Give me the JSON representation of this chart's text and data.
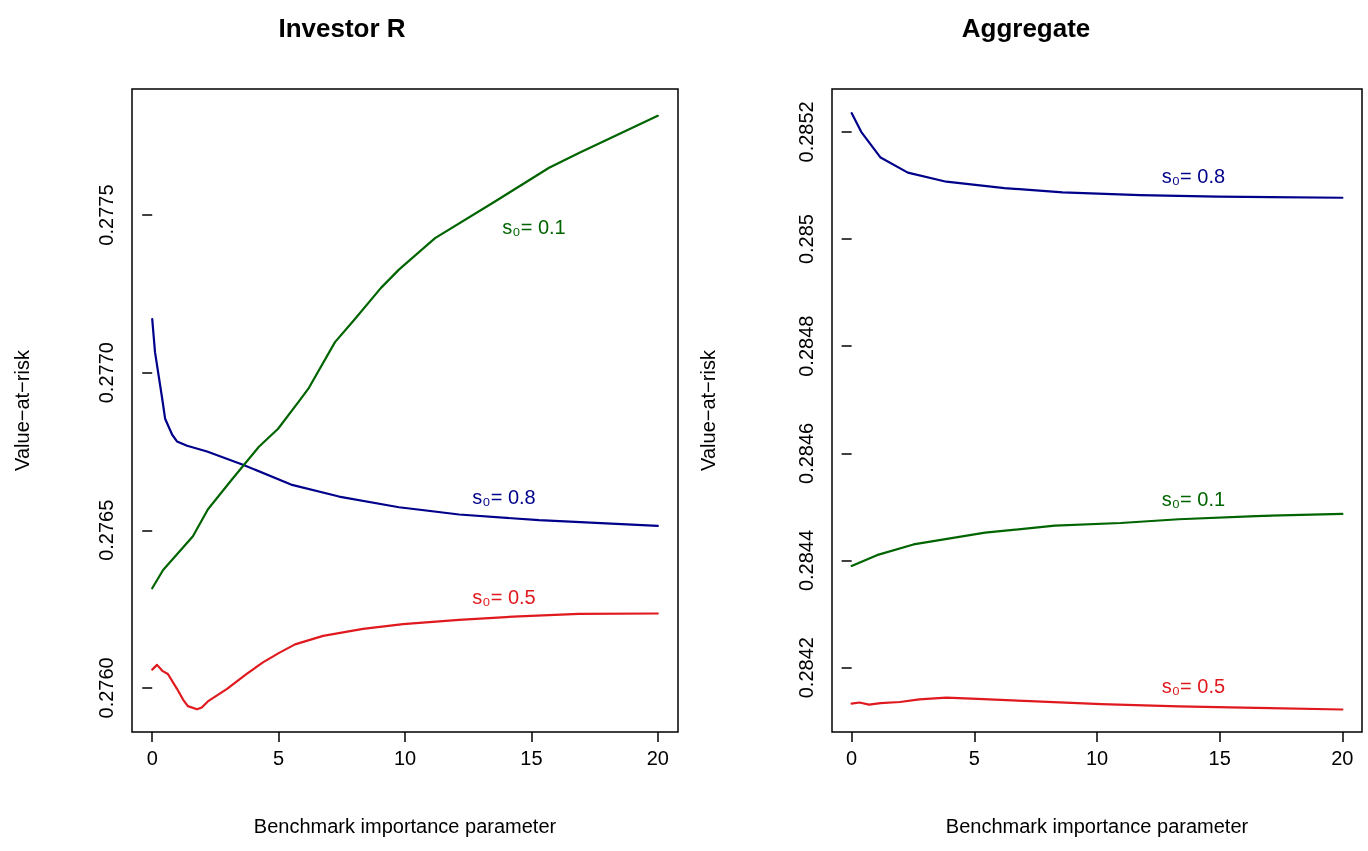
{
  "chart_data": [
    {
      "type": "line",
      "title": "Investor R",
      "xlabel": "Benchmark importance parameter",
      "ylabel": "Value−at−risk",
      "xlim": [
        -0.8,
        20.8
      ],
      "xticks": [
        0,
        5,
        10,
        15,
        20
      ],
      "ylim": [
        0.27586,
        0.2779
      ],
      "yticks": [
        {
          "value": 0.276,
          "label": "0.2760"
        },
        {
          "value": 0.2765,
          "label": "0.2765"
        },
        {
          "value": 0.277,
          "label": "0.2770"
        },
        {
          "value": 0.2775,
          "label": "0.2775"
        }
      ],
      "series": [
        {
          "name": "s₀= 0.8",
          "color": "#00008b",
          "x": [
            0,
            0.11,
            0.4,
            0.51,
            0.79,
            0.98,
            1.38,
            2.17,
            3.59,
            5.49,
            7.39,
            9.76,
            12.14,
            15.3,
            20
          ],
          "values": [
            0.27717,
            0.277065,
            0.276915,
            0.276854,
            0.276803,
            0.276782,
            0.276768,
            0.27675,
            0.276708,
            0.276645,
            0.276607,
            0.276573,
            0.27655,
            0.276532,
            0.276514
          ]
        },
        {
          "name": "s₀= 0.1",
          "color": "#006400",
          "x": [
            0,
            0.43,
            1.06,
            1.61,
            2.2,
            3.12,
            4.22,
            4.98,
            5.81,
            6.2,
            7.23,
            8.02,
            9.05,
            9.76,
            11.19,
            13.56,
            15.7,
            16.88,
            20
          ],
          "values": [
            0.276316,
            0.276374,
            0.276431,
            0.276481,
            0.276566,
            0.276658,
            0.276765,
            0.276822,
            0.27691,
            0.276952,
            0.277097,
            0.27717,
            0.277269,
            0.277327,
            0.277427,
            0.277543,
            0.27765,
            0.277697,
            0.277815
          ]
        },
        {
          "name": "s₀= 0.5",
          "color": "#e0191f",
          "x": [
            0,
            0.19,
            0.4,
            0.62,
            0.98,
            1.22,
            1.41,
            1.77,
            1.96,
            2.2,
            2.96,
            3.75,
            4.38,
            5.02,
            5.65,
            6.76,
            8.34,
            9.92,
            12.14,
            14.51,
            16.88,
            20
          ],
          "values": [
            0.276058,
            0.276073,
            0.276054,
            0.276044,
            0.275997,
            0.275963,
            0.275942,
            0.275932,
            0.275938,
            0.275957,
            0.275997,
            0.276045,
            0.276081,
            0.276111,
            0.276138,
            0.276165,
            0.276187,
            0.276202,
            0.276216,
            0.276227,
            0.276235,
            0.276236
          ]
        }
      ]
    },
    {
      "type": "line",
      "title": "Aggregate",
      "xlabel": "Benchmark importance parameter",
      "ylabel": "Value−at−risk",
      "xlim": [
        -0.8,
        20.8
      ],
      "xticks": [
        0,
        5,
        10,
        15,
        20
      ],
      "ylim": [
        0.28408,
        0.28528
      ],
      "yticks": [
        0.2842,
        0.2844,
        0.2846,
        0.2848,
        0.285,
        0.2852
      ],
      "series": [
        {
          "name": "s₀= 0.8",
          "color": "#00008b",
          "x": [
            0,
            0.39,
            1.18,
            2.29,
            3.86,
            6.23,
            8.6,
            11.75,
            14.91,
            20
          ],
          "values": [
            0.285235,
            0.2852,
            0.285152,
            0.285124,
            0.285107,
            0.285095,
            0.285087,
            0.285082,
            0.285079,
            0.285077
          ]
        },
        {
          "name": "s₀= 0.1",
          "color": "#006400",
          "x": [
            0,
            1.03,
            2.52,
            5.44,
            8.28,
            10.96,
            13.33,
            16.48,
            20
          ],
          "values": [
            0.28439,
            0.28441,
            0.28443,
            0.284452,
            0.284465,
            0.28447,
            0.284477,
            0.284483,
            0.284487
          ]
        },
        {
          "name": "s₀= 0.5",
          "color": "#e0191f",
          "x": [
            0,
            0.32,
            0.71,
            1.18,
            1.97,
            2.76,
            3.86,
            5.13,
            7.02,
            10.17,
            13.33,
            16.48,
            20
          ],
          "values": [
            0.284133,
            0.284135,
            0.284131,
            0.284134,
            0.284136,
            0.284141,
            0.284144,
            0.284142,
            0.284138,
            0.284132,
            0.284128,
            0.284125,
            0.284122
          ]
        }
      ]
    }
  ]
}
